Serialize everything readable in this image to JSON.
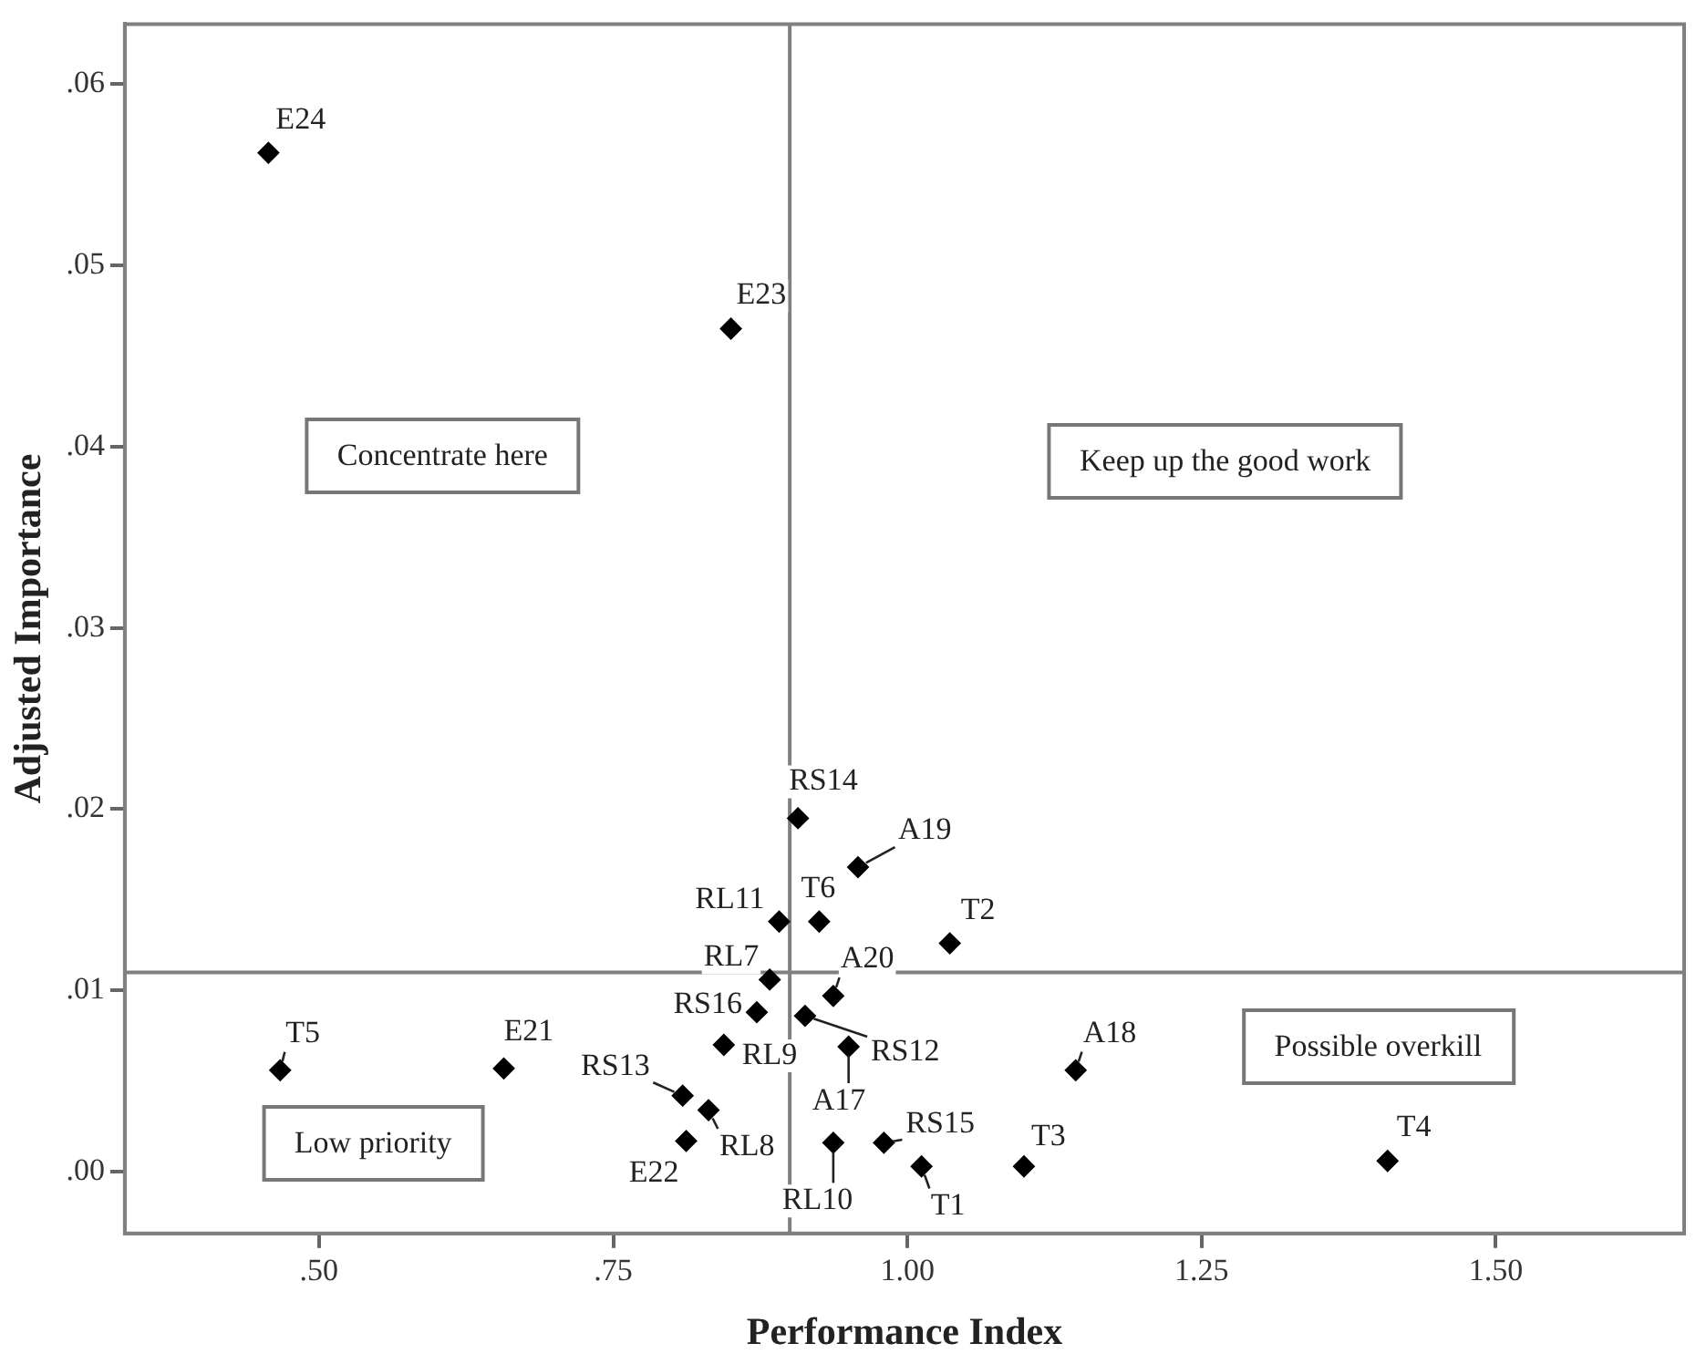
{
  "chart_data": {
    "type": "scatter",
    "xlabel": "Performance Index",
    "ylabel": "Adjusted Importance",
    "xlim": [
      0.335,
      1.66
    ],
    "ylim": [
      -0.0034,
      0.0633
    ],
    "xticks": [
      {
        "value": 0.5,
        "label": ".50"
      },
      {
        "value": 0.75,
        "label": ".75"
      },
      {
        "value": 1,
        "label": "1.00"
      },
      {
        "value": 1.25,
        "label": "1.25"
      },
      {
        "value": 1.5,
        "label": "1.50"
      }
    ],
    "yticks": [
      {
        "value": 0,
        "label": ".00"
      },
      {
        "value": 0.01,
        "label": ".01"
      },
      {
        "value": 0.02,
        "label": ".02"
      },
      {
        "value": 0.03,
        "label": ".03"
      },
      {
        "value": 0.04,
        "label": ".04"
      },
      {
        "value": 0.05,
        "label": ".05"
      },
      {
        "value": 0.06,
        "label": ".06"
      }
    ],
    "marker": "diamond",
    "grid": false,
    "legend": false,
    "ref_lines": [
      {
        "axis": "x",
        "value": 0.9,
        "color": "#808080"
      },
      {
        "axis": "y",
        "value": 0.011,
        "color": "#808080"
      }
    ],
    "annotations": [
      "Concentrate here",
      "Keep up the good work",
      "Possible overkill",
      "Low priority"
    ],
    "series": [
      {
        "name": "E24",
        "color": "#000000",
        "x": [
          0.457
        ],
        "values": [
          0.0562
        ]
      },
      {
        "name": "E23",
        "color": "#000000",
        "x": [
          0.85
        ],
        "values": [
          0.0465
        ]
      },
      {
        "name": "RS14",
        "color": "#000000",
        "x": [
          0.907
        ],
        "values": [
          0.0195
        ]
      },
      {
        "name": "A19",
        "color": "#000000",
        "x": [
          0.958
        ],
        "values": [
          0.0168
        ]
      },
      {
        "name": "RL11",
        "color": "#000000",
        "x": [
          0.891
        ],
        "values": [
          0.0138
        ]
      },
      {
        "name": "T6",
        "color": "#000000",
        "x": [
          0.925
        ],
        "values": [
          0.0138
        ]
      },
      {
        "name": "T2",
        "color": "#000000",
        "x": [
          1.036
        ],
        "values": [
          0.0126
        ]
      },
      {
        "name": "RL7",
        "color": "#000000",
        "x": [
          0.883
        ],
        "values": [
          0.0106
        ]
      },
      {
        "name": "A20",
        "color": "#000000",
        "x": [
          0.937
        ],
        "values": [
          0.0097
        ]
      },
      {
        "name": "RS16",
        "color": "#000000",
        "x": [
          0.872
        ],
        "values": [
          0.0088
        ]
      },
      {
        "name": "RS12",
        "color": "#000000",
        "x": [
          0.913
        ],
        "values": [
          0.0086
        ]
      },
      {
        "name": "RL9",
        "color": "#000000",
        "x": [
          0.844
        ],
        "values": [
          0.007
        ]
      },
      {
        "name": "A17",
        "color": "#000000",
        "x": [
          0.95
        ],
        "values": [
          0.0069
        ]
      },
      {
        "name": "RS13",
        "color": "#000000",
        "x": [
          0.809
        ],
        "values": [
          0.0042
        ]
      },
      {
        "name": "RL8",
        "color": "#000000",
        "x": [
          0.831
        ],
        "values": [
          0.0034
        ]
      },
      {
        "name": "E22",
        "color": "#000000",
        "x": [
          0.812
        ],
        "values": [
          0.0017
        ]
      },
      {
        "name": "RL10",
        "color": "#000000",
        "x": [
          0.937
        ],
        "values": [
          0.0016
        ]
      },
      {
        "name": "RS15",
        "color": "#000000",
        "x": [
          0.98
        ],
        "values": [
          0.0016
        ]
      },
      {
        "name": "T1",
        "color": "#000000",
        "x": [
          1.012
        ],
        "values": [
          0.0003
        ]
      },
      {
        "name": "T3",
        "color": "#000000",
        "x": [
          1.099
        ],
        "values": [
          0.0003
        ]
      },
      {
        "name": "A18",
        "color": "#000000",
        "x": [
          1.143
        ],
        "values": [
          0.0056
        ]
      },
      {
        "name": "T4",
        "color": "#000000",
        "x": [
          1.408
        ],
        "values": [
          0.0006
        ]
      },
      {
        "name": "T5",
        "color": "#000000",
        "x": [
          0.467
        ],
        "values": [
          0.0056
        ]
      },
      {
        "name": "E21",
        "color": "#000000",
        "x": [
          0.657
        ],
        "values": [
          0.0057
        ]
      }
    ]
  }
}
